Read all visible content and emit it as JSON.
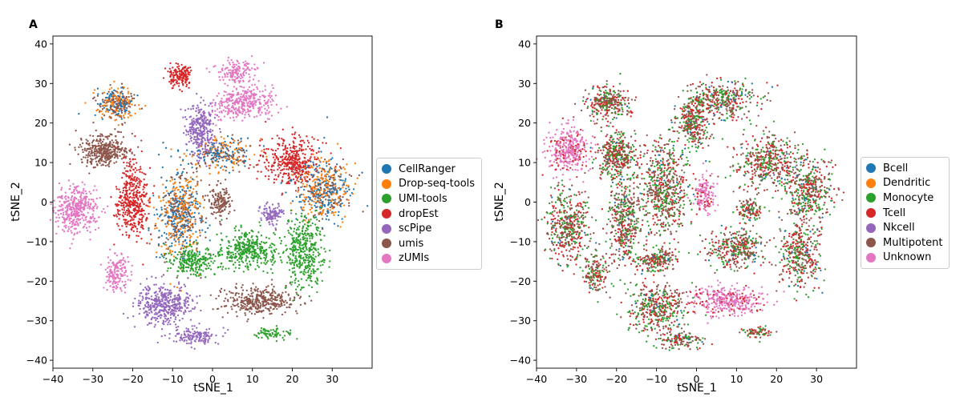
{
  "chart_data": [
    {
      "type": "scatter",
      "panel_label": "A",
      "title": "",
      "xlabel": "tSNE_1",
      "ylabel": "tSNE_2",
      "xlim": [
        -40,
        40
      ],
      "ylim": [
        -42,
        42
      ],
      "xticks": [
        -40,
        -30,
        -20,
        -10,
        0,
        10,
        20,
        30
      ],
      "yticks": [
        -40,
        -30,
        -20,
        -10,
        0,
        10,
        20,
        30,
        40
      ],
      "tick_labels_x": [
        "−40",
        "−30",
        "−20",
        "−10",
        "0",
        "10",
        "20",
        "30"
      ],
      "tick_labels_y": [
        "−40",
        "−30",
        "−20",
        "−10",
        "0",
        "10",
        "20",
        "30",
        "40"
      ],
      "legend_position": "right",
      "series": [
        {
          "name": "CellRanger",
          "color": "#1f77b4"
        },
        {
          "name": "Drop-seq-tools",
          "color": "#ff7f0e"
        },
        {
          "name": "UMI-tools",
          "color": "#2ca02c"
        },
        {
          "name": "dropEst",
          "color": "#d62728"
        },
        {
          "name": "scPipe",
          "color": "#9467bd"
        },
        {
          "name": "umis",
          "color": "#8c564b"
        },
        {
          "name": "zUMIs",
          "color": "#e377c2"
        }
      ],
      "clusters": [
        {
          "x": -34,
          "y": -2,
          "rx": 5,
          "ry": 6,
          "mix": [
            0,
            0,
            0,
            0,
            0,
            0,
            1
          ],
          "n": 400
        },
        {
          "x": -27,
          "y": 13,
          "rx": 6,
          "ry": 4,
          "mix": [
            0,
            0,
            0,
            0,
            0,
            1,
            0
          ],
          "n": 380
        },
        {
          "x": -20,
          "y": 0,
          "rx": 4,
          "ry": 10,
          "mix": [
            0,
            0,
            0,
            1,
            0,
            0,
            0
          ],
          "n": 420
        },
        {
          "x": -24,
          "y": 25,
          "rx": 5,
          "ry": 4,
          "mix": [
            0.3,
            0.35,
            0,
            0,
            0,
            0.35,
            0
          ],
          "n": 320
        },
        {
          "x": -8,
          "y": 32,
          "rx": 3,
          "ry": 3,
          "mix": [
            0,
            0,
            0,
            1,
            0,
            0,
            0
          ],
          "n": 160
        },
        {
          "x": -3,
          "y": 18,
          "rx": 3.5,
          "ry": 7,
          "mix": [
            0,
            0,
            0,
            0,
            1,
            0,
            0
          ],
          "n": 320
        },
        {
          "x": 8,
          "y": 25,
          "rx": 8,
          "ry": 4,
          "mix": [
            0,
            0,
            0,
            0,
            0,
            0,
            1
          ],
          "n": 340
        },
        {
          "x": 6,
          "y": 33,
          "rx": 5,
          "ry": 3,
          "mix": [
            0,
            0,
            0,
            0,
            0,
            0,
            1
          ],
          "n": 150
        },
        {
          "x": 20,
          "y": 10,
          "rx": 8,
          "ry": 6,
          "mix": [
            0,
            0,
            0,
            1,
            0,
            0,
            0
          ],
          "n": 420
        },
        {
          "x": 28,
          "y": 3,
          "rx": 7,
          "ry": 8,
          "mix": [
            0.4,
            0.35,
            0,
            0,
            0,
            0.25,
            0
          ],
          "n": 520
        },
        {
          "x": -8,
          "y": -3,
          "rx": 6,
          "ry": 11,
          "mix": [
            0.35,
            0.35,
            0,
            0,
            0,
            0.3,
            0
          ],
          "n": 640
        },
        {
          "x": 3,
          "y": 12,
          "rx": 7,
          "ry": 4,
          "mix": [
            0.35,
            0.3,
            0,
            0,
            0,
            0.35,
            0
          ],
          "n": 260
        },
        {
          "x": 2,
          "y": 0,
          "rx": 2.5,
          "ry": 4,
          "mix": [
            0,
            0,
            0,
            0,
            0,
            1,
            0
          ],
          "n": 150
        },
        {
          "x": 15,
          "y": -3,
          "rx": 3,
          "ry": 2.5,
          "mix": [
            0,
            0,
            0,
            0,
            1,
            0,
            0
          ],
          "n": 110
        },
        {
          "x": 9,
          "y": -12,
          "rx": 7,
          "ry": 5,
          "mix": [
            0,
            0,
            1,
            0,
            0,
            0,
            0
          ],
          "n": 380
        },
        {
          "x": 23,
          "y": -13,
          "rx": 5,
          "ry": 9,
          "mix": [
            0,
            0,
            1,
            0,
            0,
            0,
            0
          ],
          "n": 400
        },
        {
          "x": -5,
          "y": -15,
          "rx": 6,
          "ry": 3.5,
          "mix": [
            0,
            0,
            1,
            0,
            0,
            0,
            0
          ],
          "n": 240
        },
        {
          "x": 12,
          "y": -25,
          "rx": 9,
          "ry": 3.5,
          "mix": [
            0,
            0,
            0,
            0,
            0,
            1,
            0
          ],
          "n": 380
        },
        {
          "x": -12,
          "y": -26,
          "rx": 7,
          "ry": 5,
          "mix": [
            0,
            0,
            0,
            0,
            1,
            0,
            0
          ],
          "n": 420
        },
        {
          "x": -4,
          "y": -34,
          "rx": 6,
          "ry": 2,
          "mix": [
            0,
            0,
            0,
            0,
            1,
            0,
            0
          ],
          "n": 140
        },
        {
          "x": 15,
          "y": -33,
          "rx": 4,
          "ry": 1.5,
          "mix": [
            0,
            0,
            1,
            0,
            0,
            0,
            0
          ],
          "n": 70
        },
        {
          "x": -24,
          "y": -18,
          "rx": 3,
          "ry": 5,
          "mix": [
            0,
            0,
            0,
            0,
            0,
            0,
            1
          ],
          "n": 160
        }
      ]
    },
    {
      "type": "scatter",
      "panel_label": "B",
      "title": "",
      "xlabel": "tSNE_1",
      "ylabel": "tSNE_2",
      "xlim": [
        -40,
        40
      ],
      "ylim": [
        -42,
        42
      ],
      "xticks": [
        -40,
        -30,
        -20,
        -10,
        0,
        10,
        20,
        30
      ],
      "yticks": [
        -40,
        -30,
        -20,
        -10,
        0,
        10,
        20,
        30,
        40
      ],
      "tick_labels_x": [
        "−40",
        "−30",
        "−20",
        "−10",
        "0",
        "10",
        "20",
        "30"
      ],
      "tick_labels_y": [
        "−40",
        "−30",
        "−20",
        "−10",
        "0",
        "10",
        "20",
        "30",
        "40"
      ],
      "legend_position": "right",
      "series": [
        {
          "name": "Bcell",
          "color": "#1f77b4"
        },
        {
          "name": "Dendritic",
          "color": "#ff7f0e"
        },
        {
          "name": "Monocyte",
          "color": "#2ca02c"
        },
        {
          "name": "Tcell",
          "color": "#d62728"
        },
        {
          "name": "Nkcell",
          "color": "#9467bd"
        },
        {
          "name": "Multipotent",
          "color": "#8c564b"
        },
        {
          "name": "Unknown",
          "color": "#e377c2"
        }
      ],
      "clusters": [
        {
          "x": -32,
          "y": 13,
          "rx": 5,
          "ry": 6,
          "mix": [
            0,
            0,
            0,
            0.2,
            0,
            0,
            0.8
          ],
          "n": 360
        },
        {
          "x": -32,
          "y": -6,
          "rx": 5,
          "ry": 9,
          "mix": [
            0.05,
            0,
            0.3,
            0.3,
            0,
            0.35,
            0
          ],
          "n": 440
        },
        {
          "x": -20,
          "y": 12,
          "rx": 5,
          "ry": 6,
          "mix": [
            0.05,
            0,
            0.3,
            0.3,
            0,
            0.35,
            0
          ],
          "n": 380
        },
        {
          "x": -22,
          "y": 25,
          "rx": 5,
          "ry": 4,
          "mix": [
            0.05,
            0,
            0.3,
            0.3,
            0,
            0.35,
            0
          ],
          "n": 320
        },
        {
          "x": -18,
          "y": -5,
          "rx": 4,
          "ry": 10,
          "mix": [
            0.05,
            0,
            0.3,
            0.3,
            0,
            0.35,
            0
          ],
          "n": 420
        },
        {
          "x": -8,
          "y": 4,
          "rx": 6,
          "ry": 12,
          "mix": [
            0.05,
            0,
            0.3,
            0.3,
            0,
            0.35,
            0
          ],
          "n": 620
        },
        {
          "x": -1,
          "y": 20,
          "rx": 4,
          "ry": 7,
          "mix": [
            0.05,
            0,
            0.3,
            0.3,
            0,
            0.35,
            0
          ],
          "n": 320
        },
        {
          "x": 7,
          "y": 26,
          "rx": 8,
          "ry": 5,
          "mix": [
            0.05,
            0,
            0.3,
            0.3,
            0,
            0.35,
            0
          ],
          "n": 360
        },
        {
          "x": 2,
          "y": 2,
          "rx": 2.5,
          "ry": 5,
          "mix": [
            0,
            0,
            0,
            0.2,
            0,
            0,
            0.8
          ],
          "n": 150
        },
        {
          "x": 18,
          "y": 10,
          "rx": 8,
          "ry": 7,
          "mix": [
            0.05,
            0,
            0.3,
            0.3,
            0,
            0.35,
            0
          ],
          "n": 440
        },
        {
          "x": 28,
          "y": 3,
          "rx": 6,
          "ry": 8,
          "mix": [
            0.05,
            0,
            0.3,
            0.3,
            0,
            0.35,
            0
          ],
          "n": 420
        },
        {
          "x": 26,
          "y": -13,
          "rx": 5,
          "ry": 9,
          "mix": [
            0.05,
            0,
            0.3,
            0.3,
            0,
            0.35,
            0
          ],
          "n": 380
        },
        {
          "x": 10,
          "y": -12,
          "rx": 7,
          "ry": 5,
          "mix": [
            0.05,
            0,
            0.3,
            0.3,
            0,
            0.35,
            0
          ],
          "n": 360
        },
        {
          "x": 13,
          "y": -2,
          "rx": 3,
          "ry": 2.5,
          "mix": [
            0.05,
            0,
            0.3,
            0.3,
            0,
            0.35,
            0
          ],
          "n": 120
        },
        {
          "x": 8,
          "y": -25,
          "rx": 9,
          "ry": 3.5,
          "mix": [
            0,
            0,
            0,
            0.2,
            0,
            0,
            0.8
          ],
          "n": 380
        },
        {
          "x": -10,
          "y": -27,
          "rx": 7,
          "ry": 6,
          "mix": [
            0.05,
            0,
            0.3,
            0.3,
            0,
            0.35,
            0
          ],
          "n": 420
        },
        {
          "x": -4,
          "y": -35,
          "rx": 6,
          "ry": 2,
          "mix": [
            0.05,
            0,
            0.3,
            0.3,
            0,
            0.35,
            0
          ],
          "n": 140
        },
        {
          "x": -25,
          "y": -18,
          "rx": 3,
          "ry": 5,
          "mix": [
            0.05,
            0,
            0.3,
            0.3,
            0,
            0.35,
            0
          ],
          "n": 160
        },
        {
          "x": -10,
          "y": -15,
          "rx": 5,
          "ry": 3,
          "mix": [
            0.05,
            0,
            0.3,
            0.3,
            0,
            0.35,
            0
          ],
          "n": 200
        },
        {
          "x": 15,
          "y": -33,
          "rx": 4,
          "ry": 1.5,
          "mix": [
            0.05,
            0,
            0.3,
            0.3,
            0,
            0.35,
            0
          ],
          "n": 70
        }
      ]
    }
  ]
}
